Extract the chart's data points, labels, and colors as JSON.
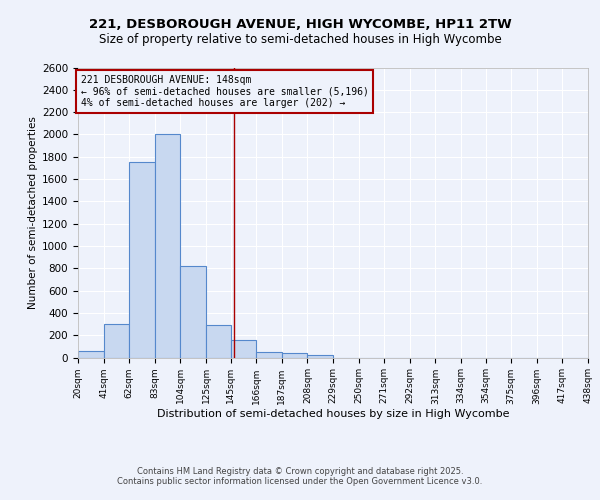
{
  "title_line1": "221, DESBOROUGH AVENUE, HIGH WYCOMBE, HP11 2TW",
  "title_line2": "Size of property relative to semi-detached houses in High Wycombe",
  "xlabel": "Distribution of semi-detached houses by size in High Wycombe",
  "ylabel": "Number of semi-detached properties",
  "footer_line1": "Contains HM Land Registry data © Crown copyright and database right 2025.",
  "footer_line2": "Contains public sector information licensed under the Open Government Licence v3.0.",
  "bin_labels": [
    "20sqm",
    "41sqm",
    "62sqm",
    "83sqm",
    "104sqm",
    "125sqm",
    "145sqm",
    "166sqm",
    "187sqm",
    "208sqm",
    "229sqm",
    "250sqm",
    "271sqm",
    "292sqm",
    "313sqm",
    "334sqm",
    "354sqm",
    "375sqm",
    "396sqm",
    "417sqm",
    "438sqm"
  ],
  "bin_edges": [
    20,
    41,
    62,
    83,
    104,
    125,
    145,
    166,
    187,
    208,
    229,
    250,
    271,
    292,
    313,
    334,
    354,
    375,
    396,
    417,
    438
  ],
  "bar_heights": [
    55,
    300,
    1750,
    2000,
    820,
    290,
    155,
    50,
    40,
    25,
    0,
    0,
    0,
    0,
    0,
    0,
    0,
    0,
    0,
    0
  ],
  "bar_color": "#c8d8f0",
  "bar_edge_color": "#5588cc",
  "property_size": 148,
  "property_line_color": "#aa0000",
  "annotation_text_line1": "221 DESBOROUGH AVENUE: 148sqm",
  "annotation_text_line2": "← 96% of semi-detached houses are smaller (5,196)",
  "annotation_text_line3": "4% of semi-detached houses are larger (202) →",
  "annotation_box_color": "#aa0000",
  "ylim": [
    0,
    2600
  ],
  "yticks": [
    0,
    200,
    400,
    600,
    800,
    1000,
    1200,
    1400,
    1600,
    1800,
    2000,
    2200,
    2400,
    2600
  ],
  "background_color": "#eef2fb",
  "grid_color": "#ffffff",
  "title1_fontsize": 9.5,
  "title2_fontsize": 8.5,
  "xlabel_fontsize": 8,
  "ylabel_fontsize": 7.5,
  "footer_fontsize": 6.0
}
